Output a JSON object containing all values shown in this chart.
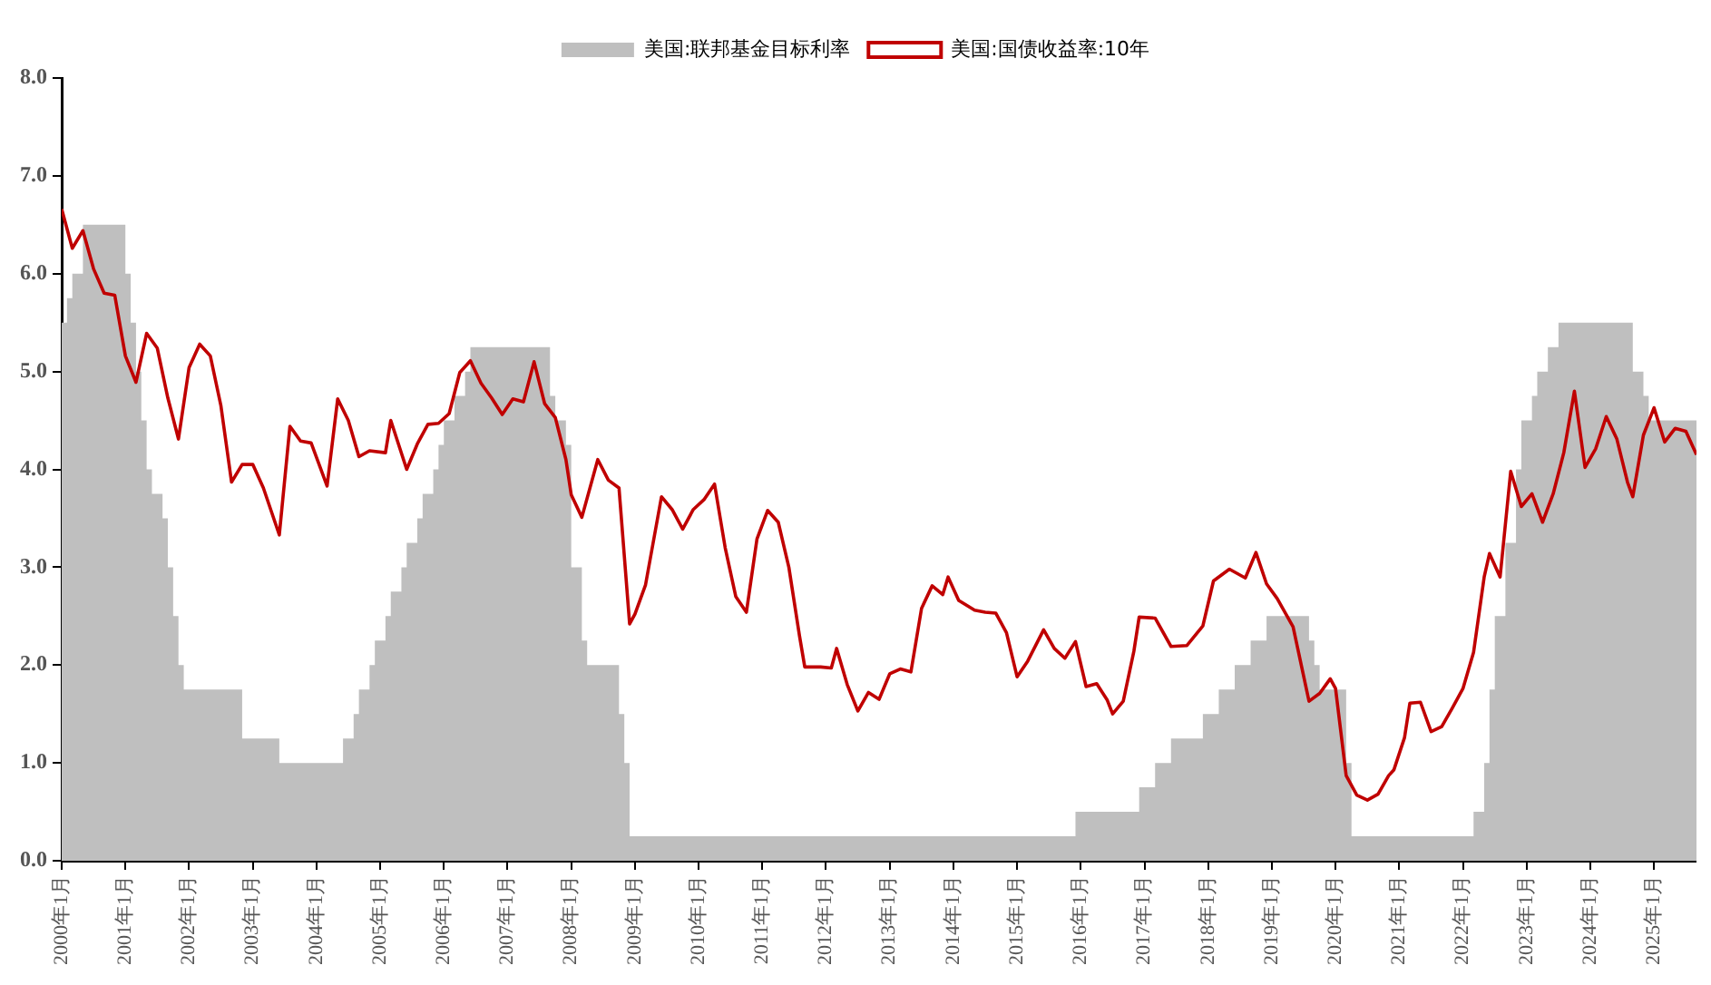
{
  "chart_data": {
    "type": "line",
    "legend": "top",
    "grid": false,
    "marker": "none",
    "xlim": [
      "2000-01",
      "2025-09"
    ],
    "ylim": [
      0,
      8
    ],
    "yticks": [
      {
        "value": 0,
        "label": "0.0"
      },
      {
        "value": 1,
        "label": "1.0"
      },
      {
        "value": 2,
        "label": "2.0"
      },
      {
        "value": 3,
        "label": "3.0"
      },
      {
        "value": 4,
        "label": "4.0"
      },
      {
        "value": 5,
        "label": "5.0"
      },
      {
        "value": 6,
        "label": "6.0"
      },
      {
        "value": 7,
        "label": "7.0"
      },
      {
        "value": 8,
        "label": "8.0"
      }
    ],
    "xticks": [
      {
        "value": "2000-01",
        "label": "2000年1月"
      },
      {
        "value": "2001-01",
        "label": "2001年1月"
      },
      {
        "value": "2002-01",
        "label": "2002年1月"
      },
      {
        "value": "2003-01",
        "label": "2003年1月"
      },
      {
        "value": "2004-01",
        "label": "2004年1月"
      },
      {
        "value": "2005-01",
        "label": "2005年1月"
      },
      {
        "value": "2006-01",
        "label": "2006年1月"
      },
      {
        "value": "2007-01",
        "label": "2007年1月"
      },
      {
        "value": "2008-01",
        "label": "2008年1月"
      },
      {
        "value": "2009-01",
        "label": "2009年1月"
      },
      {
        "value": "2010-01",
        "label": "2010年1月"
      },
      {
        "value": "2011-01",
        "label": "2011年1月"
      },
      {
        "value": "2012-01",
        "label": "2012年1月"
      },
      {
        "value": "2013-01",
        "label": "2013年1月"
      },
      {
        "value": "2014-01",
        "label": "2014年1月"
      },
      {
        "value": "2015-01",
        "label": "2015年1月"
      },
      {
        "value": "2016-01",
        "label": "2016年1月"
      },
      {
        "value": "2017-01",
        "label": "2017年1月"
      },
      {
        "value": "2018-01",
        "label": "2018年1月"
      },
      {
        "value": "2019-01",
        "label": "2019年1月"
      },
      {
        "value": "2020-01",
        "label": "2020年1月"
      },
      {
        "value": "2021-01",
        "label": "2021年1月"
      },
      {
        "value": "2022-01",
        "label": "2022年1月"
      },
      {
        "value": "2023-01",
        "label": "2023年1月"
      },
      {
        "value": "2024-01",
        "label": "2024年1月"
      },
      {
        "value": "2025-01",
        "label": "2025年1月"
      }
    ],
    "series": [
      {
        "name": "美国:联邦基金目标利率",
        "type": "area",
        "color": "#bfbfbf",
        "x": [
          "2000-01",
          "2000-02",
          "2000-03",
          "2000-05",
          "2001-01",
          "2001-02",
          "2001-03",
          "2001-04",
          "2001-05",
          "2001-06",
          "2001-08",
          "2001-09",
          "2001-10",
          "2001-11",
          "2001-12",
          "2002-11",
          "2003-06",
          "2004-06",
          "2004-08",
          "2004-09",
          "2004-11",
          "2004-12",
          "2005-02",
          "2005-03",
          "2005-05",
          "2005-06",
          "2005-08",
          "2005-09",
          "2005-11",
          "2005-12",
          "2006-01",
          "2006-03",
          "2006-05",
          "2006-06",
          "2007-09",
          "2007-10",
          "2007-12",
          "2008-01",
          "2008-02",
          "2008-03",
          "2008-04",
          "2008-10",
          "2008-11",
          "2008-12",
          "2015-12",
          "2016-12",
          "2017-03",
          "2017-06",
          "2017-12",
          "2018-03",
          "2018-06",
          "2018-09",
          "2018-12",
          "2019-08",
          "2019-09",
          "2019-10",
          "2020-03",
          "2020-04",
          "2022-03",
          "2022-05",
          "2022-06",
          "2022-07",
          "2022-09",
          "2022-11",
          "2022-12",
          "2023-02",
          "2023-03",
          "2023-05",
          "2023-07",
          "2024-09",
          "2024-11",
          "2024-12",
          "2025-09"
        ],
        "values": [
          5.5,
          5.75,
          6.0,
          6.5,
          6.0,
          5.5,
          5.0,
          4.5,
          4.0,
          3.75,
          3.5,
          3.0,
          2.5,
          2.0,
          1.75,
          1.25,
          1.0,
          1.25,
          1.5,
          1.75,
          2.0,
          2.25,
          2.5,
          2.75,
          3.0,
          3.25,
          3.5,
          3.75,
          4.0,
          4.25,
          4.5,
          4.75,
          5.0,
          5.25,
          4.75,
          4.5,
          4.25,
          3.0,
          3.0,
          2.25,
          2.0,
          1.5,
          1.0,
          0.25,
          0.5,
          0.75,
          1.0,
          1.25,
          1.5,
          1.75,
          2.0,
          2.25,
          2.5,
          2.25,
          2.0,
          1.75,
          1.0,
          0.25,
          0.5,
          1.0,
          1.75,
          2.5,
          3.25,
          4.0,
          4.5,
          4.75,
          5.0,
          5.25,
          5.5,
          5.0,
          4.75,
          4.5,
          4.5
        ]
      },
      {
        "name": "美国:国债收益率:10年",
        "type": "line",
        "color": "#c00000",
        "x": [
          "2000-01",
          "2000-03",
          "2000-05",
          "2000-07",
          "2000-09",
          "2000-11",
          "2001-01",
          "2001-03",
          "2001-05",
          "2001-07",
          "2001-09",
          "2001-11",
          "2002-01",
          "2002-03",
          "2002-05",
          "2002-07",
          "2002-09",
          "2002-11",
          "2003-01",
          "2003-03",
          "2003-06",
          "2003-08",
          "2003-10",
          "2003-12",
          "2004-03",
          "2004-05",
          "2004-07",
          "2004-09",
          "2004-11",
          "2005-02",
          "2005-03",
          "2005-06",
          "2005-08",
          "2005-10",
          "2005-12",
          "2006-02",
          "2006-04",
          "2006-06",
          "2006-08",
          "2006-10",
          "2006-12",
          "2007-02",
          "2007-04",
          "2007-06",
          "2007-08",
          "2007-10",
          "2007-12",
          "2008-01",
          "2008-03",
          "2008-06",
          "2008-08",
          "2008-10",
          "2008-12",
          "2009-01",
          "2009-03",
          "2009-06",
          "2009-08",
          "2009-10",
          "2009-12",
          "2010-02",
          "2010-04",
          "2010-06",
          "2010-08",
          "2010-10",
          "2010-12",
          "2011-02",
          "2011-04",
          "2011-06",
          "2011-08",
          "2011-09",
          "2011-12",
          "2012-02",
          "2012-03",
          "2012-05",
          "2012-07",
          "2012-09",
          "2012-11",
          "2013-01",
          "2013-03",
          "2013-05",
          "2013-07",
          "2013-09",
          "2013-11",
          "2013-12",
          "2014-02",
          "2014-05",
          "2014-07",
          "2014-09",
          "2014-11",
          "2015-01",
          "2015-03",
          "2015-06",
          "2015-08",
          "2015-10",
          "2015-12",
          "2016-02",
          "2016-04",
          "2016-06",
          "2016-07",
          "2016-09",
          "2016-11",
          "2016-12",
          "2017-03",
          "2017-06",
          "2017-09",
          "2017-12",
          "2018-02",
          "2018-05",
          "2018-08",
          "2018-10",
          "2018-12",
          "2019-02",
          "2019-05",
          "2019-08",
          "2019-10",
          "2019-12",
          "2020-01",
          "2020-03",
          "2020-05",
          "2020-07",
          "2020-09",
          "2020-11",
          "2020-12",
          "2021-02",
          "2021-03",
          "2021-05",
          "2021-07",
          "2021-09",
          "2021-11",
          "2022-01",
          "2022-03",
          "2022-05",
          "2022-06",
          "2022-08",
          "2022-10",
          "2022-12",
          "2023-02",
          "2023-04",
          "2023-06",
          "2023-08",
          "2023-10",
          "2023-12",
          "2024-02",
          "2024-04",
          "2024-06",
          "2024-08",
          "2024-09",
          "2024-11",
          "2025-01",
          "2025-03",
          "2025-05",
          "2025-07",
          "2025-09"
        ],
        "values": [
          6.66,
          6.26,
          6.44,
          6.05,
          5.8,
          5.78,
          5.16,
          4.89,
          5.39,
          5.24,
          4.73,
          4.31,
          5.04,
          5.28,
          5.16,
          4.65,
          3.87,
          4.05,
          4.05,
          3.81,
          3.33,
          4.44,
          4.29,
          4.27,
          3.83,
          4.72,
          4.5,
          4.13,
          4.19,
          4.17,
          4.5,
          4.0,
          4.26,
          4.46,
          4.47,
          4.57,
          4.99,
          5.11,
          4.88,
          4.73,
          4.56,
          4.72,
          4.69,
          5.1,
          4.67,
          4.53,
          4.1,
          3.74,
          3.51,
          4.1,
          3.89,
          3.81,
          2.42,
          2.52,
          2.82,
          3.72,
          3.59,
          3.39,
          3.59,
          3.69,
          3.85,
          3.2,
          2.7,
          2.54,
          3.29,
          3.58,
          3.46,
          3.0,
          2.3,
          1.98,
          1.98,
          1.97,
          2.17,
          1.8,
          1.53,
          1.72,
          1.65,
          1.91,
          1.96,
          1.93,
          2.58,
          2.81,
          2.72,
          2.9,
          2.66,
          2.56,
          2.54,
          2.53,
          2.33,
          1.88,
          2.04,
          2.36,
          2.17,
          2.07,
          2.24,
          1.78,
          1.81,
          1.64,
          1.5,
          1.63,
          2.14,
          2.49,
          2.48,
          2.19,
          2.2,
          2.4,
          2.86,
          2.98,
          2.89,
          3.15,
          2.83,
          2.68,
          2.39,
          1.63,
          1.71,
          1.86,
          1.76,
          0.87,
          0.67,
          0.62,
          0.68,
          0.87,
          0.93,
          1.26,
          1.61,
          1.62,
          1.32,
          1.37,
          1.56,
          1.76,
          2.13,
          2.9,
          3.14,
          2.9,
          3.98,
          3.62,
          3.75,
          3.46,
          3.75,
          4.17,
          4.8,
          4.02,
          4.21,
          4.54,
          4.31,
          3.87,
          3.72,
          4.35,
          4.63,
          4.28,
          4.42,
          4.39,
          4.15
        ]
      }
    ]
  }
}
